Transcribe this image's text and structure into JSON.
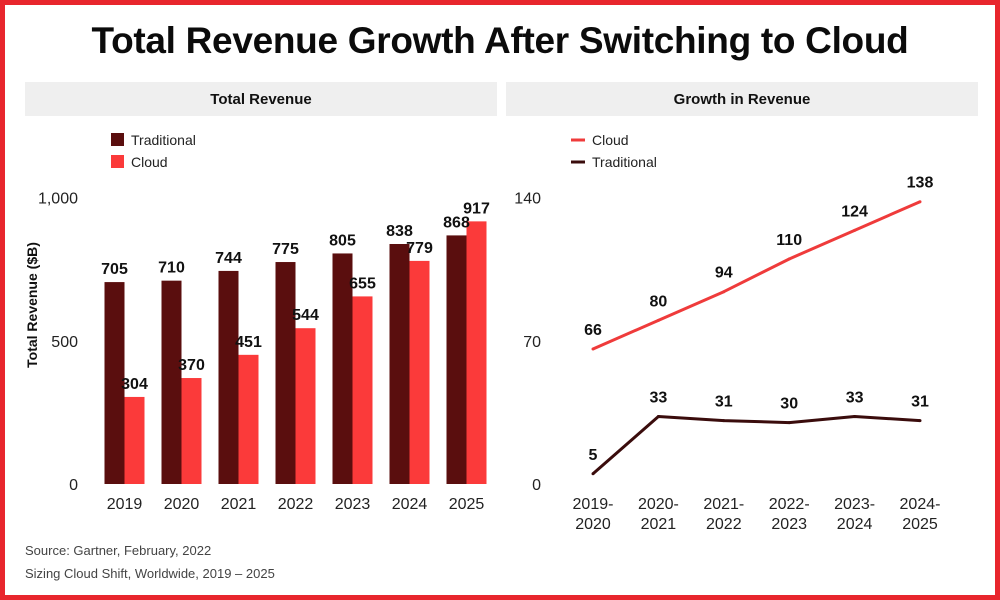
{
  "title": "Total Revenue Growth After Switching to Cloud",
  "panels": {
    "left_header": "Total Revenue",
    "right_header": "Growth in Revenue"
  },
  "footer": {
    "source": "Source: Gartner, February, 2022",
    "note": "Sizing Cloud Shift, Worldwide, 2019 – 2025"
  },
  "colors": {
    "traditional": "#5a0e0e",
    "cloud": "#fb3a3a",
    "cloud_line": "#ef3b3b",
    "traditional_line": "#3a0c0c",
    "frame": "#e8262d"
  },
  "chart_data": [
    {
      "type": "bar",
      "title": "Total Revenue",
      "ylabel": "Total Revenue ($B)",
      "xlabel": "",
      "ylim": [
        0,
        1250
      ],
      "yticks": [
        0,
        500,
        1000
      ],
      "ytick_labels": [
        "0",
        "500",
        "1,000"
      ],
      "categories": [
        "2019",
        "2020",
        "2021",
        "2022",
        "2023",
        "2024",
        "2025"
      ],
      "legend_position": "top-left",
      "grid": false,
      "series": [
        {
          "name": "Traditional",
          "values": [
            705,
            710,
            744,
            775,
            805,
            838,
            868
          ]
        },
        {
          "name": "Cloud",
          "values": [
            304,
            370,
            451,
            544,
            655,
            779,
            917
          ]
        }
      ]
    },
    {
      "type": "line",
      "title": "Growth in Revenue",
      "xlabel": "",
      "ylabel": "",
      "ylim": [
        0,
        175
      ],
      "yticks": [
        0,
        70,
        140
      ],
      "ytick_labels": [
        "0",
        "70",
        "140"
      ],
      "categories": [
        "2019-\n2020",
        "2020-\n2021",
        "2021-\n2022",
        "2022-\n2023",
        "2023-\n2024",
        "2024-\n2025"
      ],
      "legend_position": "top-left",
      "grid": false,
      "series": [
        {
          "name": "Cloud",
          "values": [
            66,
            80,
            94,
            110,
            124,
            138
          ]
        },
        {
          "name": "Traditional",
          "values": [
            5,
            33,
            31,
            30,
            33,
            31
          ]
        }
      ]
    }
  ]
}
